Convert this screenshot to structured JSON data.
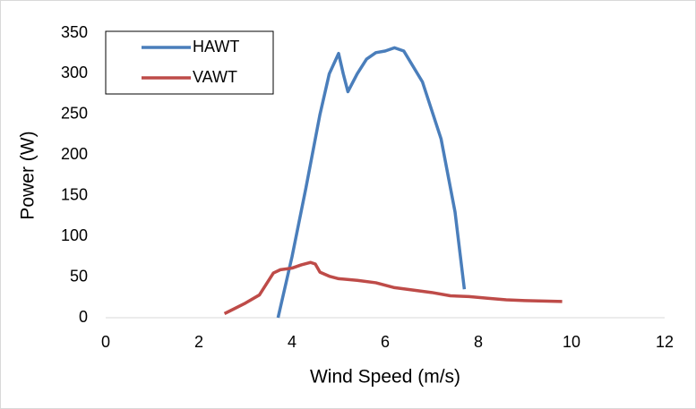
{
  "chart_data": {
    "type": "line",
    "x_label": "Wind Speed (m/s)",
    "y_label": "Power (W)",
    "xlim": [
      0,
      12
    ],
    "xticks": [
      0,
      2,
      4,
      6,
      8,
      10,
      12
    ],
    "ylim": [
      0,
      350
    ],
    "yticks": [
      0,
      50,
      100,
      150,
      200,
      250,
      300,
      350
    ],
    "grid": false,
    "legend": "upper-left",
    "series": [
      {
        "name": "HAWT",
        "color": "#4a7ebb",
        "x": [
          3.7,
          4.0,
          4.3,
          4.6,
          4.8,
          5.0,
          5.1,
          5.2,
          5.4,
          5.6,
          5.8,
          6.0,
          6.2,
          6.4,
          6.8,
          7.2,
          7.5,
          7.7
        ],
        "values": [
          0,
          75,
          160,
          250,
          300,
          325,
          300,
          278,
          300,
          318,
          326,
          328,
          332,
          328,
          290,
          220,
          130,
          35
        ]
      },
      {
        "name": "VAWT",
        "color": "#be4b48",
        "x": [
          2.55,
          3.0,
          3.3,
          3.6,
          3.75,
          4.0,
          4.2,
          4.4,
          4.5,
          4.6,
          4.8,
          5.0,
          5.4,
          5.8,
          6.2,
          6.6,
          7.0,
          7.4,
          7.8,
          8.2,
          8.6,
          9.0,
          9.4,
          9.8
        ],
        "values": [
          5,
          18,
          28,
          55,
          59,
          61,
          65,
          68,
          66,
          56,
          51,
          48,
          46,
          43,
          37,
          34,
          31,
          27,
          26,
          24,
          22,
          21,
          20.5,
          20
        ]
      }
    ]
  }
}
